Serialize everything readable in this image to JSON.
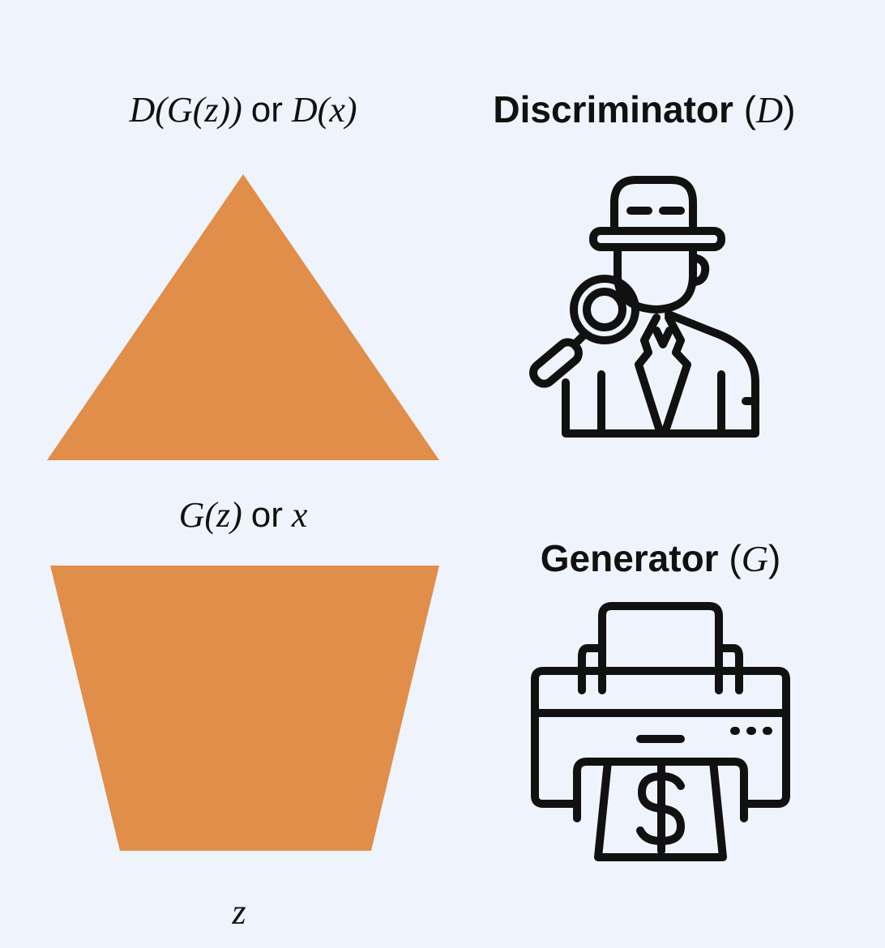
{
  "labels": {
    "top_output": {
      "d_of_g": "D(G(z))",
      "or": "or",
      "d_of_x": "D(x)"
    },
    "middle": {
      "g_of_z": "G(z)",
      "or": "or",
      "x": "x"
    },
    "bottom": "z"
  },
  "discriminator": {
    "name": "Discriminator",
    "symbol": "D",
    "icon": "detective-icon"
  },
  "generator": {
    "name": "Generator",
    "symbol": "G",
    "icon": "money-printer-icon"
  },
  "colors": {
    "background": "#eff4fc",
    "shape_fill": "#e08e4a",
    "icon_stroke": "#111111"
  }
}
